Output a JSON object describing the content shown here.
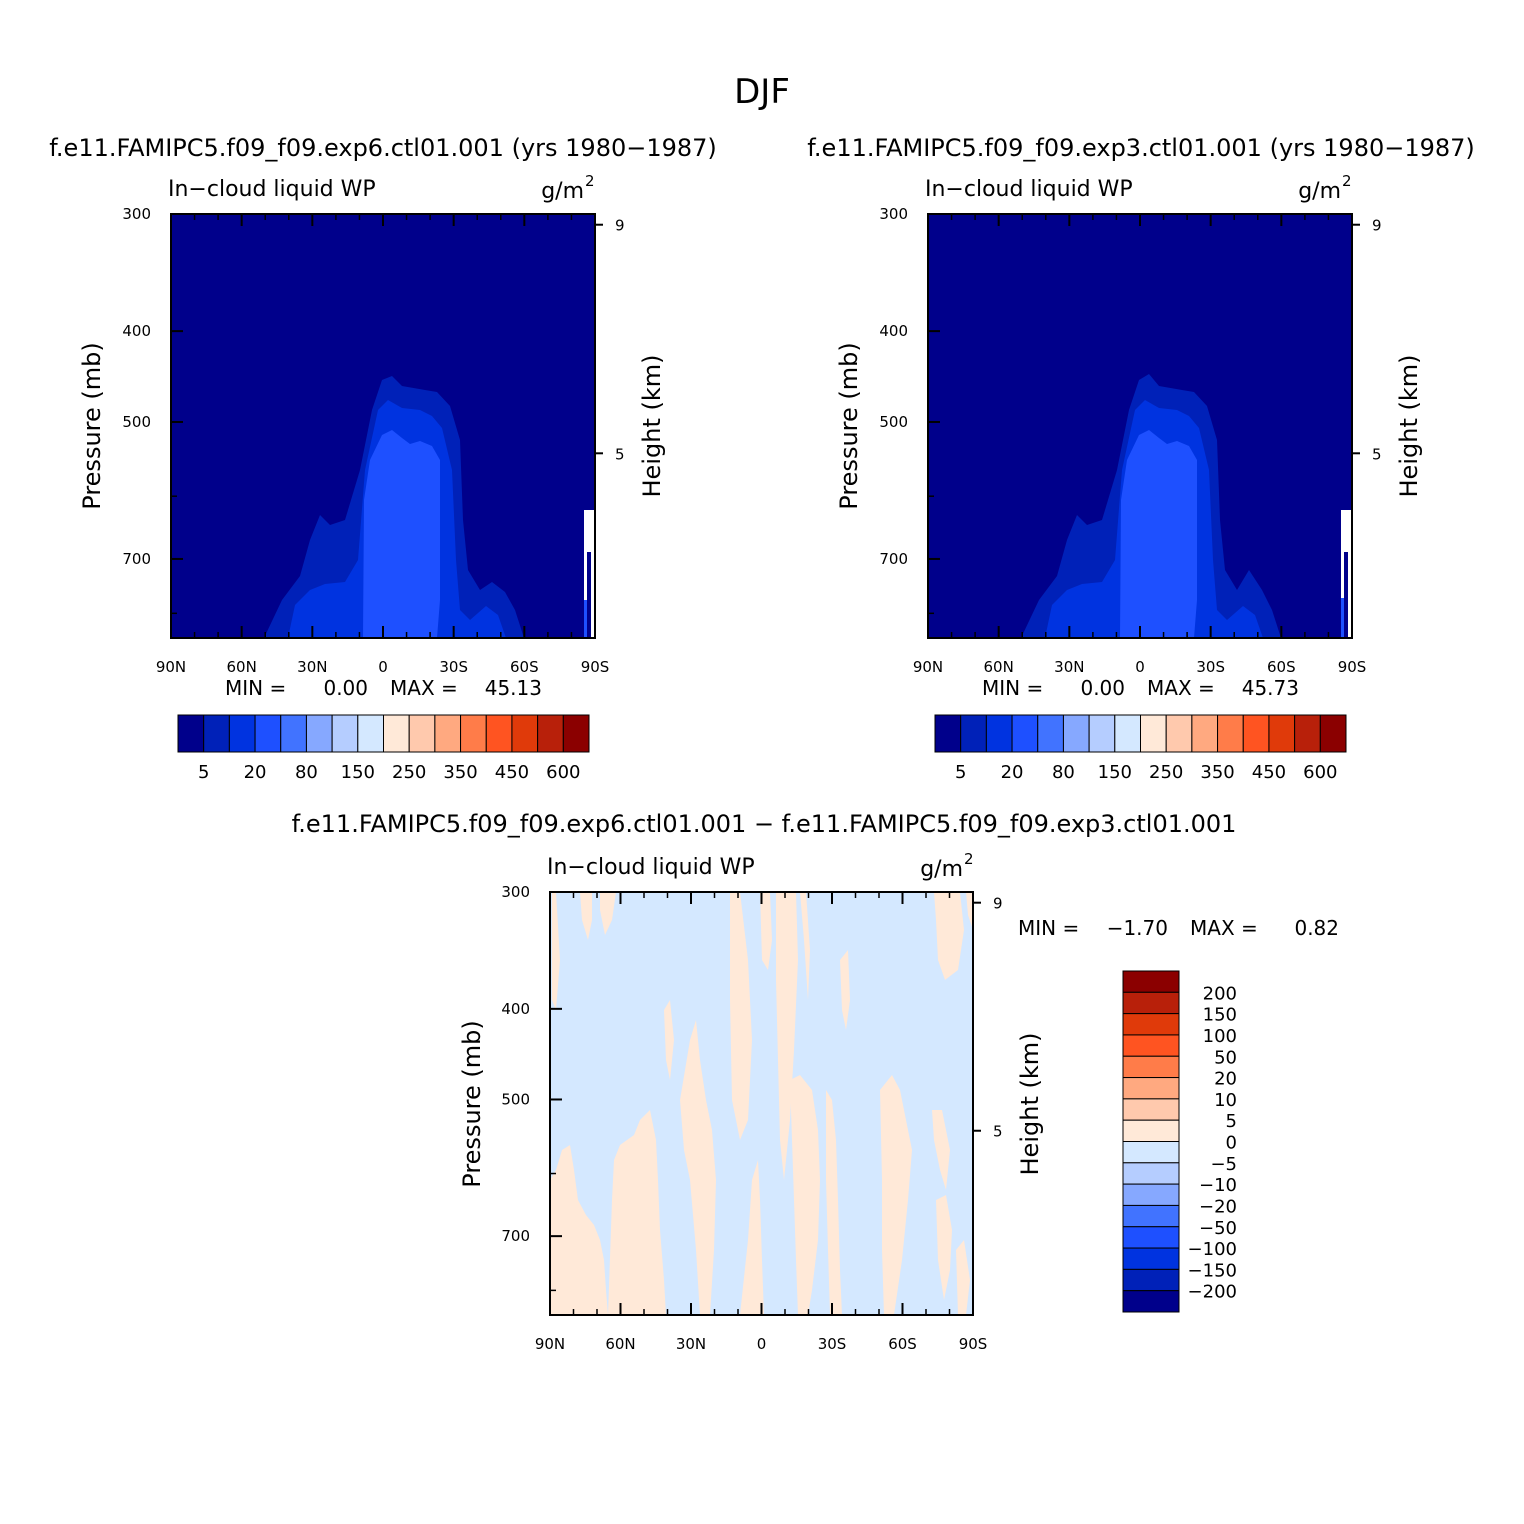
{
  "chart_data": [
    {
      "type": "contour",
      "panel": "top-left",
      "figure_title": "DJF",
      "title": "f.e11.FAMIPC5.f09_f09.exp6.ctl01.001 (yrs 1980−1987)",
      "variable": "In−cloud liquid WP",
      "units": "g/m",
      "units_sup": "2",
      "ylabel": "Pressure (mb)",
      "y2label": "Height (km)",
      "xticks": [
        "90N",
        "60N",
        "30N",
        "0",
        "30S",
        "60S",
        "90S"
      ],
      "yticks": [
        "300",
        "400",
        "500",
        "700"
      ],
      "y2ticks": [
        "9",
        "5"
      ],
      "ylim": [
        300,
        850
      ],
      "xlim": [
        "90N",
        "90S"
      ],
      "min_label": "MIN =",
      "min": "0.00",
      "max_label": "MAX =",
      "max": "45.13",
      "colorbar": {
        "orientation": "horizontal",
        "colors": [
          "#00008b",
          "#0021b8",
          "#0033e0",
          "#1e50ff",
          "#4173ff",
          "#86a8ff",
          "#b5cdff",
          "#d4e8ff",
          "#ffe9d8",
          "#ffc9ad",
          "#ffa980",
          "#ff7c49",
          "#ff5421",
          "#e03a0a",
          "#b8200a",
          "#8b0000"
        ],
        "labels": [
          "5",
          "20",
          "80",
          "150",
          "250",
          "350",
          "450",
          "600"
        ]
      }
    },
    {
      "type": "contour",
      "panel": "top-right",
      "title": "f.e11.FAMIPC5.f09_f09.exp3.ctl01.001 (yrs 1980−1987)",
      "variable": "In−cloud liquid WP",
      "units": "g/m",
      "units_sup": "2",
      "ylabel": "Pressure (mb)",
      "y2label": "Height (km)",
      "xticks": [
        "90N",
        "60N",
        "30N",
        "0",
        "30S",
        "60S",
        "90S"
      ],
      "yticks": [
        "300",
        "400",
        "500",
        "700"
      ],
      "y2ticks": [
        "9",
        "5"
      ],
      "ylim": [
        300,
        850
      ],
      "min_label": "MIN =",
      "min": "0.00",
      "max_label": "MAX =",
      "max": "45.73",
      "colorbar": {
        "orientation": "horizontal",
        "colors": [
          "#00008b",
          "#0021b8",
          "#0033e0",
          "#1e50ff",
          "#4173ff",
          "#86a8ff",
          "#b5cdff",
          "#d4e8ff",
          "#ffe9d8",
          "#ffc9ad",
          "#ffa980",
          "#ff7c49",
          "#ff5421",
          "#e03a0a",
          "#b8200a",
          "#8b0000"
        ],
        "labels": [
          "5",
          "20",
          "80",
          "150",
          "250",
          "350",
          "450",
          "600"
        ]
      }
    },
    {
      "type": "contour",
      "panel": "bottom",
      "title": "f.e11.FAMIPC5.f09_f09.exp6.ctl01.001 − f.e11.FAMIPC5.f09_f09.exp3.ctl01.001",
      "variable": "In−cloud liquid WP",
      "units": "g/m",
      "units_sup": "2",
      "ylabel": "Pressure (mb)",
      "y2label": "Height (km)",
      "xticks": [
        "90N",
        "60N",
        "30N",
        "0",
        "30S",
        "60S",
        "90S"
      ],
      "yticks": [
        "300",
        "400",
        "500",
        "700"
      ],
      "y2ticks": [
        "9",
        "5"
      ],
      "ylim": [
        300,
        850
      ],
      "min_label": "MIN =",
      "min": "−1.70",
      "max_label": "MAX =",
      "max": "0.82",
      "colorbar": {
        "orientation": "vertical",
        "colors_top_to_bottom": [
          "#8b0000",
          "#b8200a",
          "#e03a0a",
          "#ff5421",
          "#ff7c49",
          "#ffa980",
          "#ffc9ad",
          "#ffe9d8",
          "#d4e8ff",
          "#b5cdff",
          "#86a8ff",
          "#4173ff",
          "#1e50ff",
          "#0033e0",
          "#0021b8",
          "#00008b"
        ],
        "labels_top_to_bottom": [
          "200",
          "150",
          "100",
          "50",
          "20",
          "10",
          "5",
          "0",
          "−5",
          "−10",
          "−20",
          "−50",
          "−100",
          "−150",
          "−200"
        ]
      }
    }
  ]
}
